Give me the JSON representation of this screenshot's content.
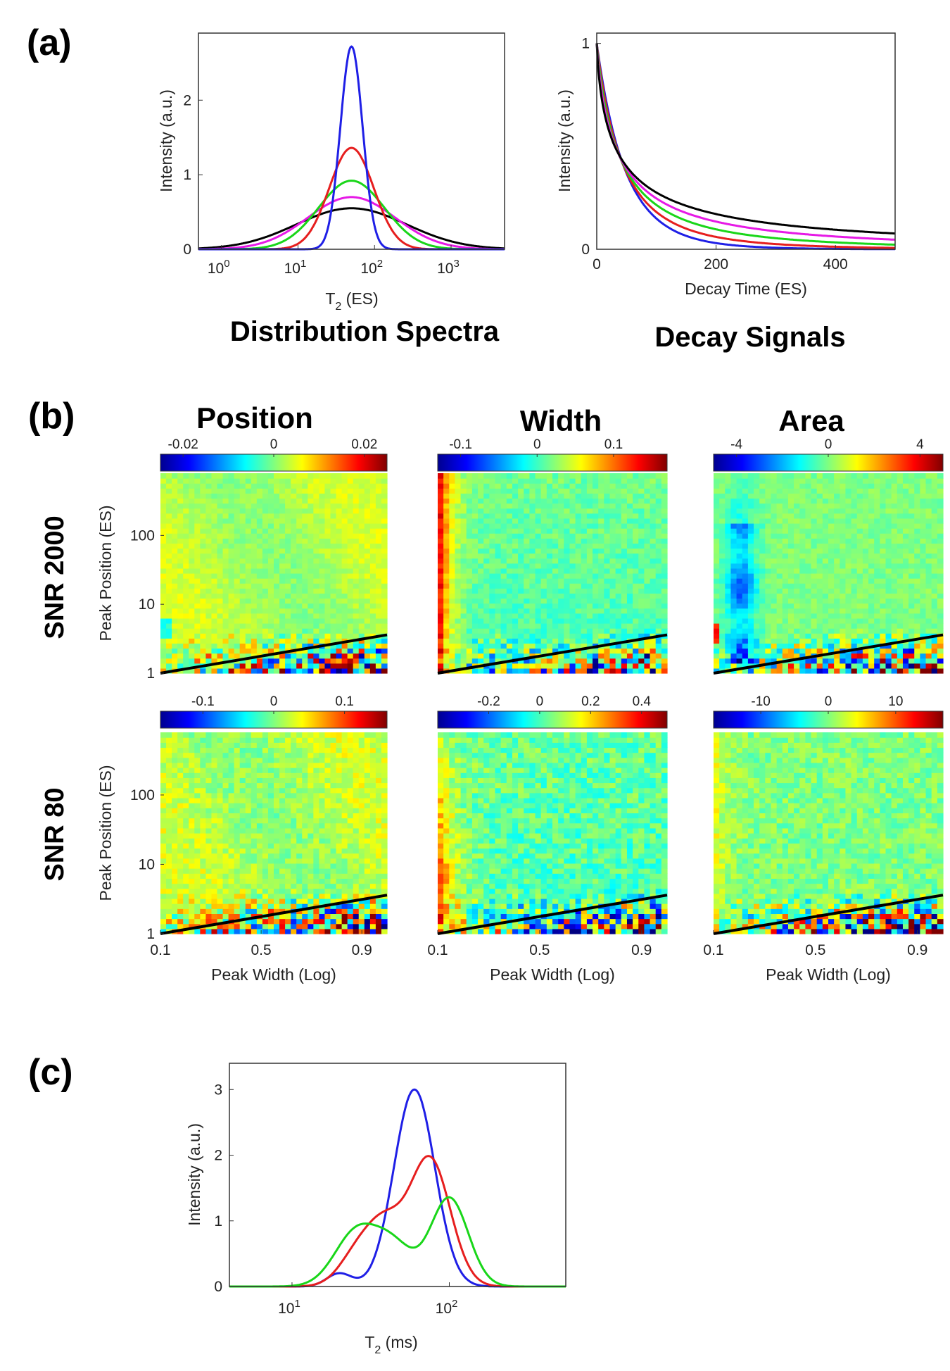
{
  "panels": {
    "a": "(a)",
    "b": "(b)",
    "c": "(c)"
  },
  "colors": {
    "blue": "#1f1fe6",
    "red": "#e61e1e",
    "green": "#19d619",
    "magenta": "#e619e6",
    "black": "#000000"
  },
  "chart_data": [
    {
      "id": "spectra",
      "type": "line",
      "title": "Distribution Spectra",
      "xlabel": "T2 (ES)",
      "ylabel": "Intensity (a.u.)",
      "xscale": "log",
      "xlim": [
        0.5,
        5000
      ],
      "ylim": [
        0,
        2.9
      ],
      "xticks": [
        1,
        10,
        100,
        1000
      ],
      "xticklabels": [
        "10^0",
        "10^1",
        "10^2",
        "10^3"
      ],
      "yticks": [
        0,
        1,
        2
      ],
      "series": [
        {
          "name": "blue",
          "color": "#1f1fe6",
          "center": 50,
          "sigma_log10": 0.145,
          "peak": 2.72
        },
        {
          "name": "red",
          "color": "#e61e1e",
          "center": 50,
          "sigma_log10": 0.29,
          "peak": 1.36
        },
        {
          "name": "green",
          "color": "#19d619",
          "center": 50,
          "sigma_log10": 0.43,
          "peak": 0.92
        },
        {
          "name": "magenta",
          "color": "#e619e6",
          "center": 50,
          "sigma_log10": 0.57,
          "peak": 0.7
        },
        {
          "name": "black",
          "color": "#000000",
          "center": 50,
          "sigma_log10": 0.72,
          "peak": 0.55
        }
      ]
    },
    {
      "id": "decay",
      "type": "line",
      "title": "Decay Signals",
      "xlabel": "Decay Time (ES)",
      "ylabel": "Intensity (a.u.)",
      "xlim": [
        0,
        500
      ],
      "ylim": [
        0,
        1.05
      ],
      "xticks": [
        0,
        200,
        400
      ],
      "yticks": [
        0,
        1
      ],
      "series": [
        {
          "name": "blue",
          "color": "#1f1fe6",
          "center": 50,
          "sigma_log10": 0.145
        },
        {
          "name": "red",
          "color": "#e61e1e",
          "center": 50,
          "sigma_log10": 0.29
        },
        {
          "name": "green",
          "color": "#19d619",
          "center": 50,
          "sigma_log10": 0.43
        },
        {
          "name": "magenta",
          "color": "#e619e6",
          "center": 50,
          "sigma_log10": 0.57
        },
        {
          "name": "black",
          "color": "#000000",
          "center": 50,
          "sigma_log10": 0.72
        }
      ]
    },
    {
      "id": "heatmaps",
      "type": "heatmap",
      "col_titles": [
        "Position",
        "Width",
        "Area"
      ],
      "row_titles": [
        "SNR 2000",
        "SNR 80"
      ],
      "xlabel": "Peak Width (Log)",
      "ylabel": "Peak Position (ES)",
      "xticks": [
        0.1,
        0.5,
        0.9
      ],
      "xlim": [
        0.1,
        1.0
      ],
      "yticks": [
        1,
        10,
        100
      ],
      "ylim": [
        1,
        800
      ],
      "grid_size": [
        40,
        40
      ],
      "boundary_line": {
        "x": [
          0.1,
          1.0
        ],
        "y": [
          1.0,
          3.6
        ]
      },
      "colorbars": [
        {
          "range": [
            -0.025,
            0.025
          ],
          "ticks": [
            -0.02,
            0,
            0.02
          ],
          "labels": [
            "-0.02",
            "0",
            "0.02"
          ]
        },
        {
          "range": [
            -0.13,
            0.17
          ],
          "ticks": [
            -0.1,
            0,
            0.1
          ],
          "labels": [
            "-0.1",
            "0",
            "0.1"
          ]
        },
        {
          "range": [
            -5,
            5
          ],
          "ticks": [
            -4,
            0,
            4
          ],
          "labels": [
            "-4",
            "0",
            "4"
          ]
        },
        {
          "range": [
            -0.16,
            0.16
          ],
          "ticks": [
            -0.1,
            0,
            0.1
          ],
          "labels": [
            "-0.1",
            "0",
            "0.1"
          ]
        },
        {
          "range": [
            -0.4,
            0.5
          ],
          "ticks": [
            -0.2,
            0,
            0.2,
            0.4
          ],
          "labels": [
            "-0.2",
            "0",
            "0.2",
            "0.4"
          ]
        },
        {
          "range": [
            -17,
            17
          ],
          "ticks": [
            -10,
            0,
            10
          ],
          "labels": [
            "-10",
            "0",
            "10"
          ]
        }
      ]
    },
    {
      "id": "measured",
      "type": "line",
      "xlabel": "T2 (ms)",
      "ylabel": "Intensity (a.u.)",
      "xscale": "log",
      "xlim": [
        4,
        550
      ],
      "ylim": [
        0,
        3.4
      ],
      "xticks": [
        10,
        100
      ],
      "xticklabels": [
        "10^1",
        "10^2"
      ],
      "yticks": [
        0,
        1,
        2,
        3
      ],
      "series": [
        {
          "name": "blue",
          "color": "#1f1fe6",
          "components": [
            [
              0.2,
              20,
              0.08
            ],
            [
              3.0,
              60,
              0.13
            ]
          ]
        },
        {
          "name": "red",
          "color": "#e61e1e",
          "components": [
            [
              0.55,
              27,
              0.12
            ],
            [
              0.75,
              40,
              0.11
            ],
            [
              1.95,
              75,
              0.13
            ]
          ]
        },
        {
          "name": "green",
          "color": "#19d619",
          "components": [
            [
              0.85,
              26,
              0.14
            ],
            [
              0.55,
              45,
              0.12
            ],
            [
              1.35,
              100,
              0.12
            ]
          ]
        }
      ]
    }
  ]
}
